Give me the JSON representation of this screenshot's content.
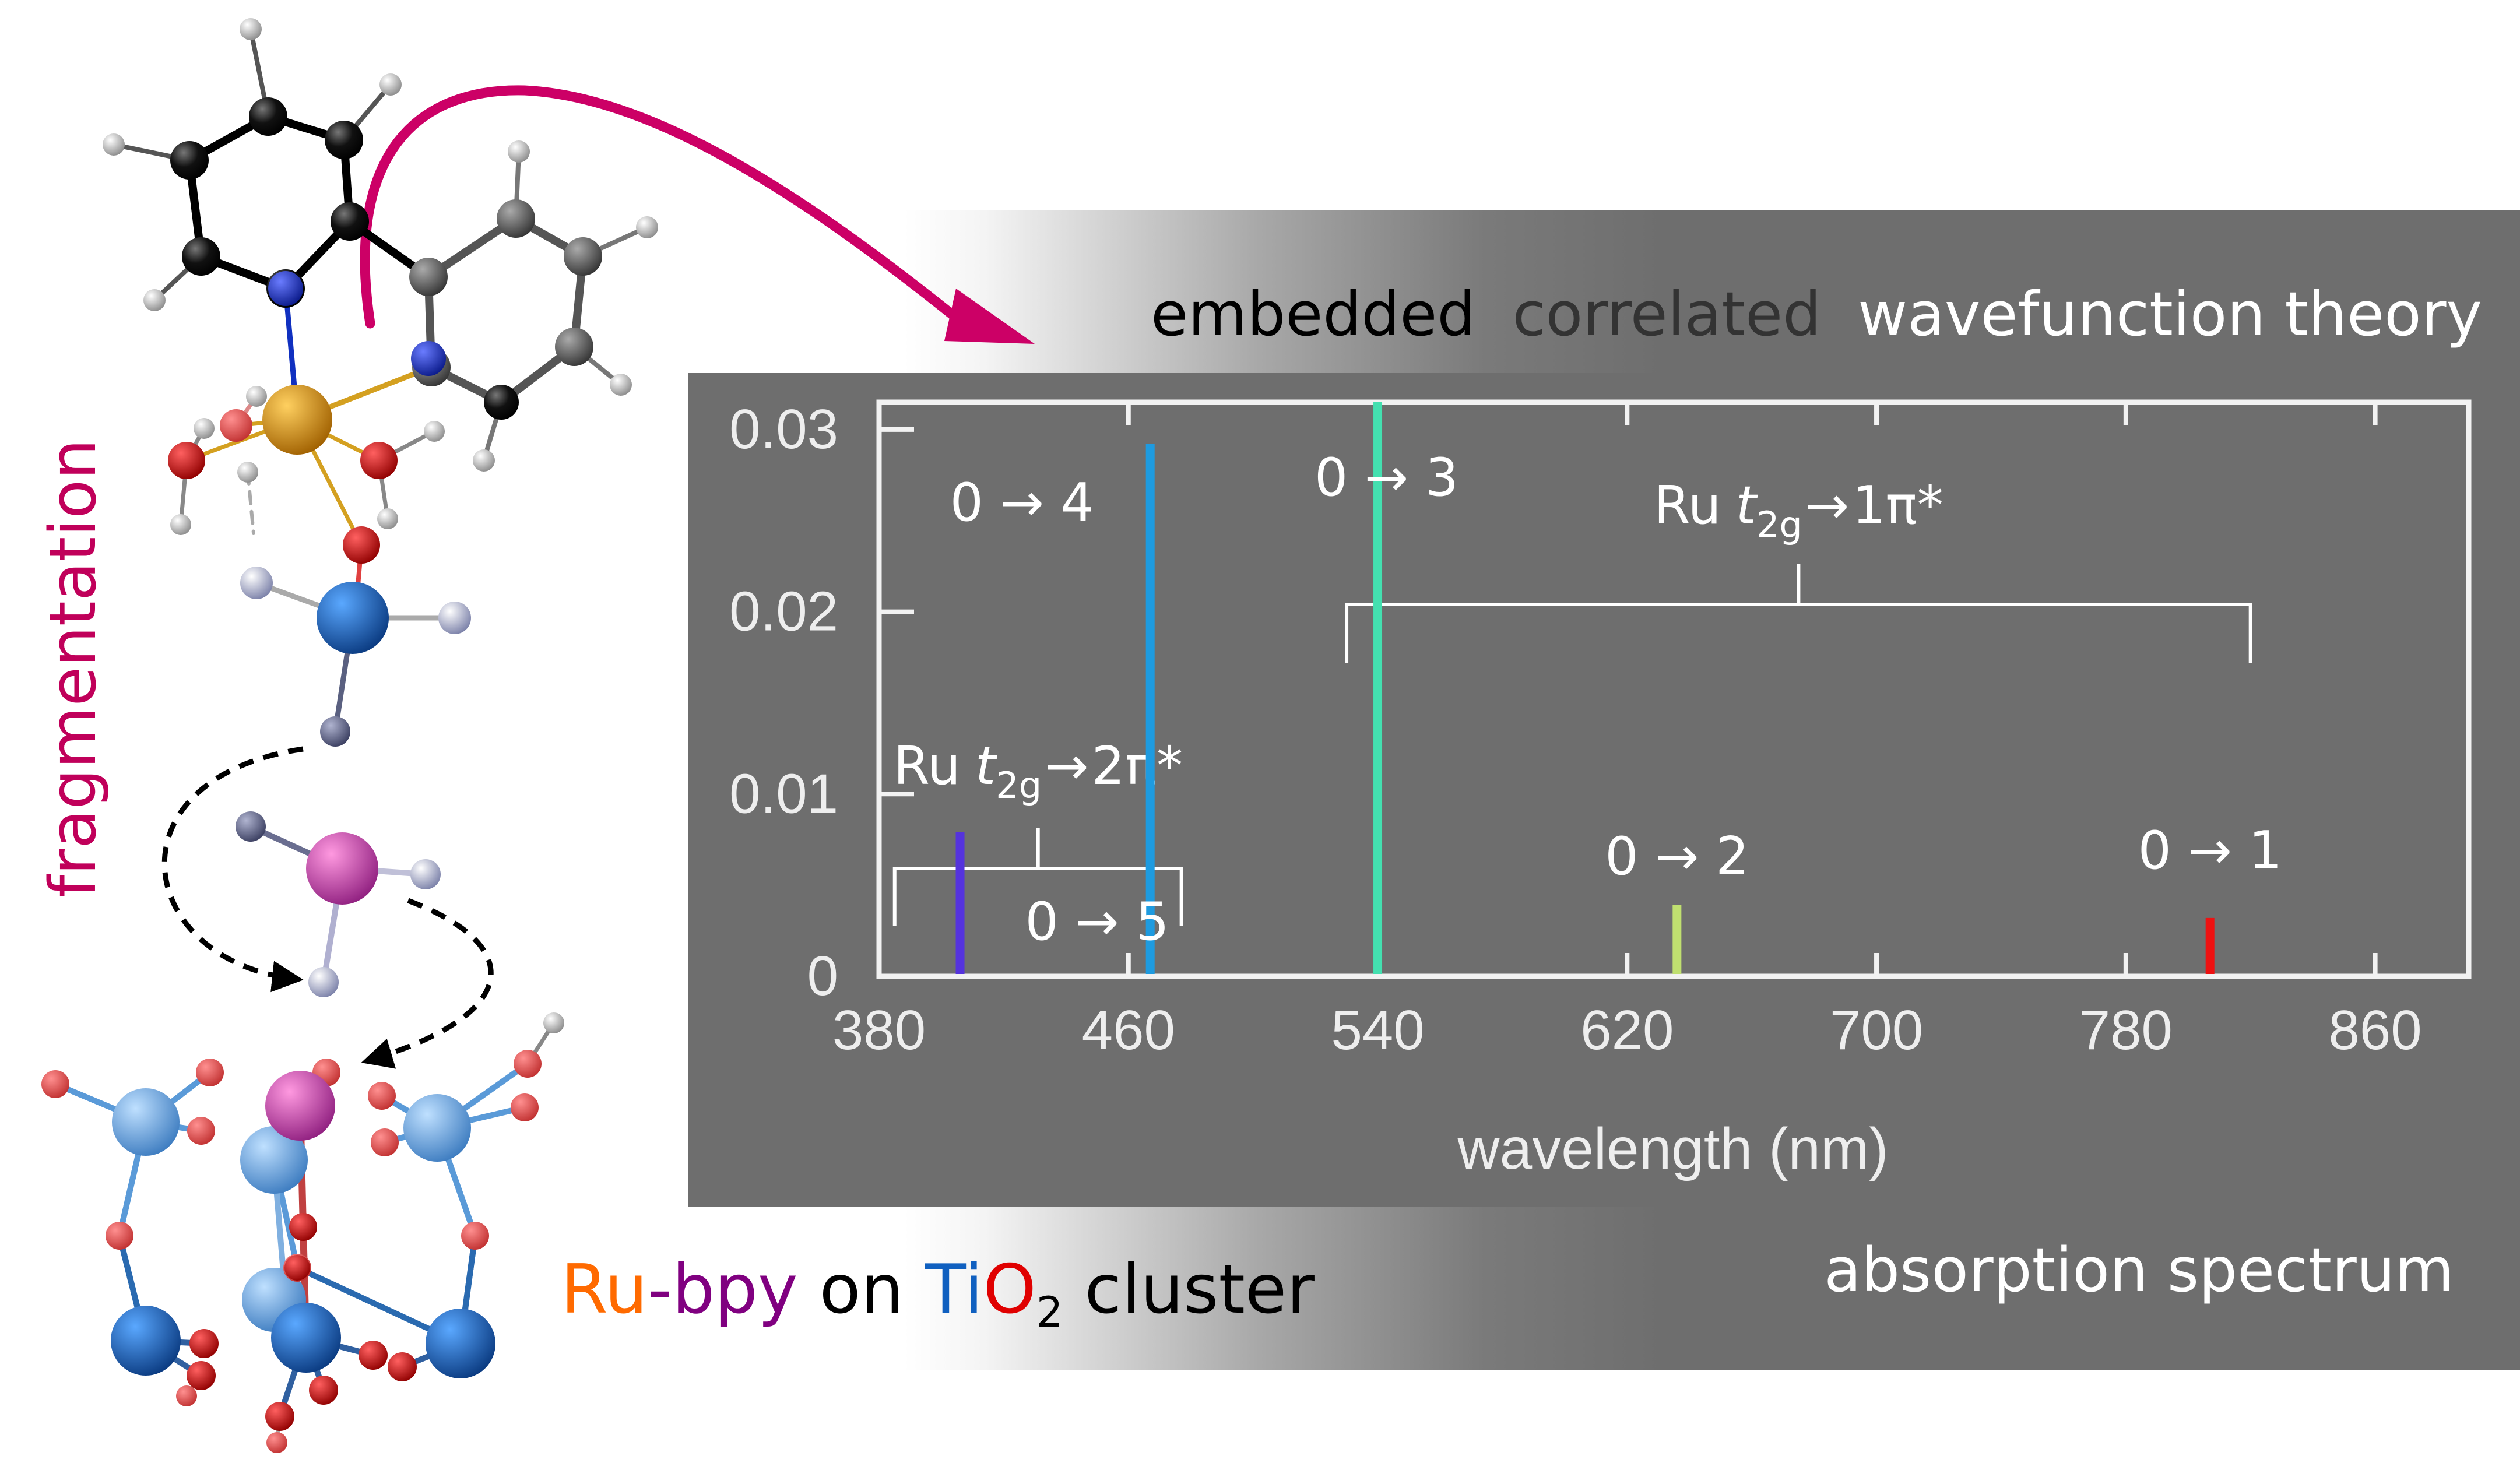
{
  "header": {
    "words": [
      "embedded",
      "correlated",
      "wavefunction theory"
    ]
  },
  "footer": {
    "label": "absorption spectrum"
  },
  "side_label": "fragmentation",
  "caption": {
    "ru": "Ru",
    "dash": "-",
    "bpy": "bpy",
    "on": " on ",
    "ti": "Ti",
    "o": "O",
    "sub": "2",
    "cluster": " cluster"
  },
  "colors": {
    "ru": "#ff6a00",
    "bpy": "#800080",
    "ti": "#1060c0",
    "o": "#e00000",
    "arrow": "#cc0066",
    "fragmentation": "#c0005a"
  },
  "chart_data": {
    "type": "bar",
    "xlabel": "wavelength (nm)",
    "ylabel": "",
    "xlim": [
      380,
      890
    ],
    "ylim": [
      0,
      0.0315
    ],
    "xticks": [
      "380",
      "460",
      "540",
      "620",
      "700",
      "780",
      "860"
    ],
    "yticks": [
      "0",
      "0.01",
      "0.02",
      "0.03"
    ],
    "series": [
      {
        "label": "0 → 5",
        "x": 406,
        "y": 0.0079,
        "color": "#5533dd"
      },
      {
        "label": "0 → 4",
        "x": 467,
        "y": 0.0292,
        "color": "#1e9be0"
      },
      {
        "label": "0 → 3",
        "x": 540,
        "y": 0.0315,
        "color": "#44e0b0"
      },
      {
        "label": "0 → 2",
        "x": 636,
        "y": 0.0039,
        "color": "#c0e070"
      },
      {
        "label": "0 → 1",
        "x": 807,
        "y": 0.0032,
        "color": "#ee1111"
      }
    ],
    "groups": [
      {
        "ru": "Ru",
        "t": "t",
        "sub": "2g",
        "arrow": "→",
        "target": "1π*",
        "range": [
          530,
          820
        ]
      },
      {
        "ru": "Ru",
        "t": "t",
        "sub": "2g",
        "arrow": "→",
        "target": "2π*",
        "range": [
          385,
          477
        ]
      }
    ]
  }
}
